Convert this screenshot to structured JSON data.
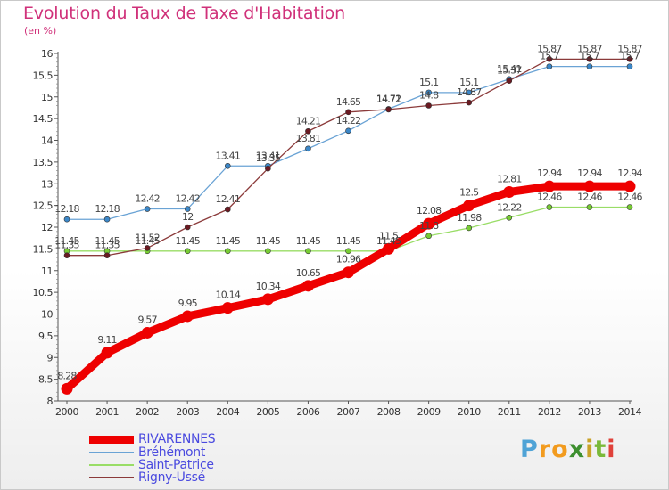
{
  "header": {
    "title": "Evolution du Taux de Taxe d'Habitation",
    "subtitle": "(en %)"
  },
  "logo": {
    "text": "Proxiti",
    "letters": [
      "P",
      "r",
      "o",
      "x",
      "i",
      "t",
      "i"
    ],
    "colors": [
      "#4fa3d6",
      "#f29b1e",
      "#f29b1e",
      "#3d8f2f",
      "#c9a227",
      "#7ab93a",
      "#e0413a"
    ]
  },
  "chart_data": {
    "type": "line",
    "x": [
      2000,
      2001,
      2002,
      2003,
      2004,
      2005,
      2006,
      2007,
      2008,
      2009,
      2010,
      2011,
      2012,
      2013,
      2014
    ],
    "xtick_labels": [
      "2000",
      "2001",
      "2002",
      "2003",
      "2004",
      "2005",
      "2006",
      "2007",
      "2008",
      "2009",
      "2010",
      "2011",
      "2012",
      "2013",
      "2014"
    ],
    "ylim": [
      8,
      16
    ],
    "yticks": [
      8,
      8.5,
      9,
      9.5,
      10,
      10.5,
      11,
      11.5,
      12,
      12.5,
      13,
      13.5,
      14,
      14.5,
      15,
      15.5,
      16
    ],
    "ytick_labels": [
      "8",
      "8.5",
      "9",
      "9.5",
      "10",
      "10.5",
      "11",
      "11.5",
      "12",
      "12.5",
      "13",
      "13.5",
      "14",
      "14.5",
      "15",
      "15.5",
      "16"
    ],
    "grid": false,
    "legend_position": "bottom-left",
    "series": [
      {
        "name": "RIVARENNES",
        "color": "#ee0000",
        "marker_color": "#ee0000",
        "emphasis": true,
        "values": [
          8.28,
          9.11,
          9.57,
          9.95,
          10.14,
          10.34,
          10.65,
          10.96,
          11.5,
          12.08,
          12.5,
          12.81,
          12.94,
          12.94,
          12.94
        ],
        "labels": [
          "8.28",
          "9.11",
          "9.57",
          "9.95",
          "10.14",
          "10.34",
          "10.65",
          "10.96",
          "11.5",
          "12.08",
          "12.5",
          "12.81",
          "12.94",
          "12.94",
          "12.94"
        ]
      },
      {
        "name": "Bréhémont",
        "color": "#6aa3d5",
        "marker_color": "#3b87c8",
        "emphasis": false,
        "values": [
          12.18,
          12.18,
          12.42,
          12.42,
          13.41,
          13.41,
          13.81,
          14.22,
          14.72,
          15.1,
          15.1,
          15.41,
          15.7,
          15.7,
          15.7
        ],
        "labels": [
          "12.18",
          "12.18",
          "12.42",
          "12.42",
          "13.41",
          "13.41",
          "13.81",
          "14.22",
          "14.72",
          "15.1",
          "15.1",
          "15.41",
          "15.7",
          "15.7",
          "15.7"
        ]
      },
      {
        "name": "Saint-Patrice",
        "color": "#99dd66",
        "marker_color": "#77cc33",
        "emphasis": false,
        "values": [
          11.45,
          11.45,
          11.45,
          11.45,
          11.45,
          11.45,
          11.45,
          11.45,
          11.45,
          11.8,
          11.98,
          12.22,
          12.46,
          12.46,
          12.46
        ],
        "labels": [
          "11.45",
          "11.45",
          "11.45",
          "11.45",
          "11.45",
          "11.45",
          "11.45",
          "11.45",
          "11.45",
          "11.8",
          "11.98",
          "12.22",
          "12.46",
          "12.46",
          "12.46"
        ]
      },
      {
        "name": "Rigny-Ussé",
        "color": "#8b3a3a",
        "marker_color": "#6b1a22",
        "emphasis": false,
        "values": [
          11.35,
          11.35,
          11.52,
          12,
          12.41,
          13.35,
          14.21,
          14.65,
          14.71,
          14.8,
          14.87,
          15.37,
          15.87,
          15.87,
          15.87
        ],
        "labels": [
          "11.35",
          "11.35",
          "11.52",
          "12",
          "12.41",
          "13.35",
          "14.21",
          "14.65",
          "14.71",
          "14.8",
          "14.87",
          "15.37",
          "15.87",
          "15.87",
          "15.87"
        ]
      }
    ]
  }
}
